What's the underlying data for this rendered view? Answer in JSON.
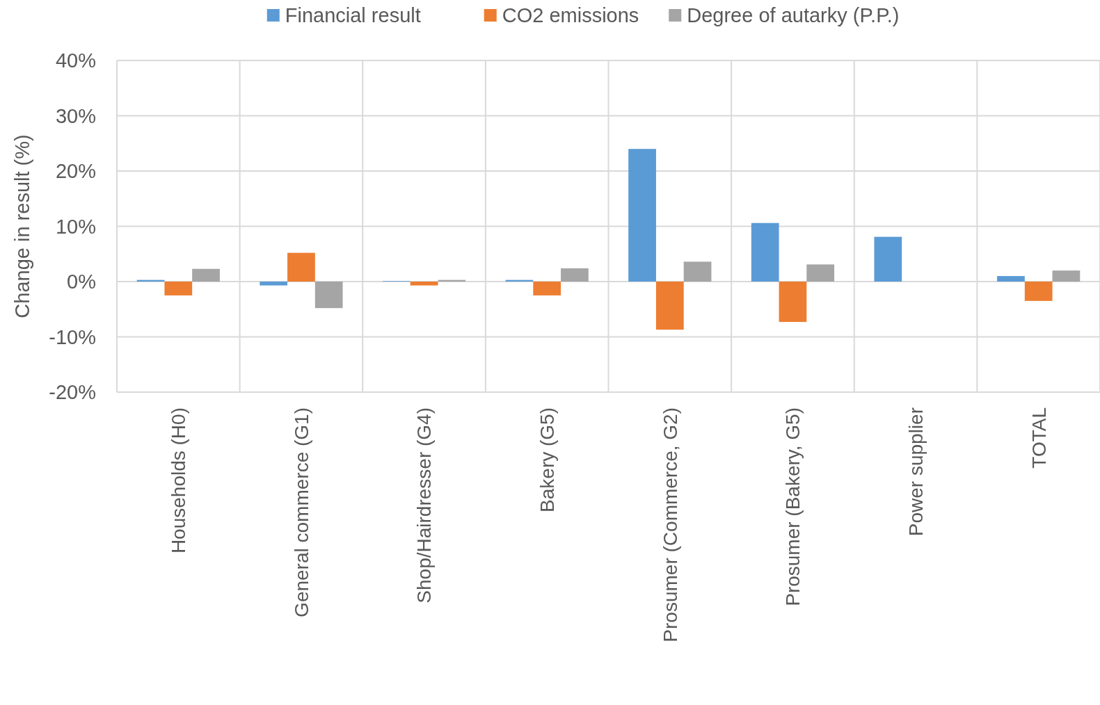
{
  "chart_data": {
    "type": "bar",
    "ylabel": "Change in result (%)",
    "categories": [
      "Households (H0)",
      "General commerce (G1)",
      "Shop/Hairdresser (G4)",
      "Bakery (G5)",
      "Prosumer (Commerce, G2)",
      "Prosumer (Bakery, G5)",
      "Power supplier",
      "TOTAL"
    ],
    "series": [
      {
        "name": "Financial result",
        "color": "#5b9bd5",
        "values": [
          0.3,
          -0.7,
          0.1,
          0.3,
          24.0,
          10.6,
          8.1,
          1.0
        ]
      },
      {
        "name": "CO2 emissions",
        "color": "#ed7d31",
        "values": [
          -2.5,
          5.2,
          -0.7,
          -2.5,
          -8.7,
          -7.3,
          0,
          -3.5
        ]
      },
      {
        "name": "Degree of autarky (P.P.)",
        "color": "#a5a5a5",
        "values": [
          2.3,
          -4.8,
          0.3,
          2.4,
          3.6,
          3.1,
          0,
          2.0
        ]
      }
    ],
    "ylim": [
      -20,
      40
    ],
    "yticks": [
      {
        "value": -20,
        "label": "-20%"
      },
      {
        "value": -10,
        "label": "-10%"
      },
      {
        "value": 0,
        "label": "0%"
      },
      {
        "value": 10,
        "label": "10%"
      },
      {
        "value": 20,
        "label": "20%"
      },
      {
        "value": 30,
        "label": "30%"
      },
      {
        "value": 40,
        "label": "40%"
      }
    ],
    "grid": true,
    "legend": "top"
  }
}
